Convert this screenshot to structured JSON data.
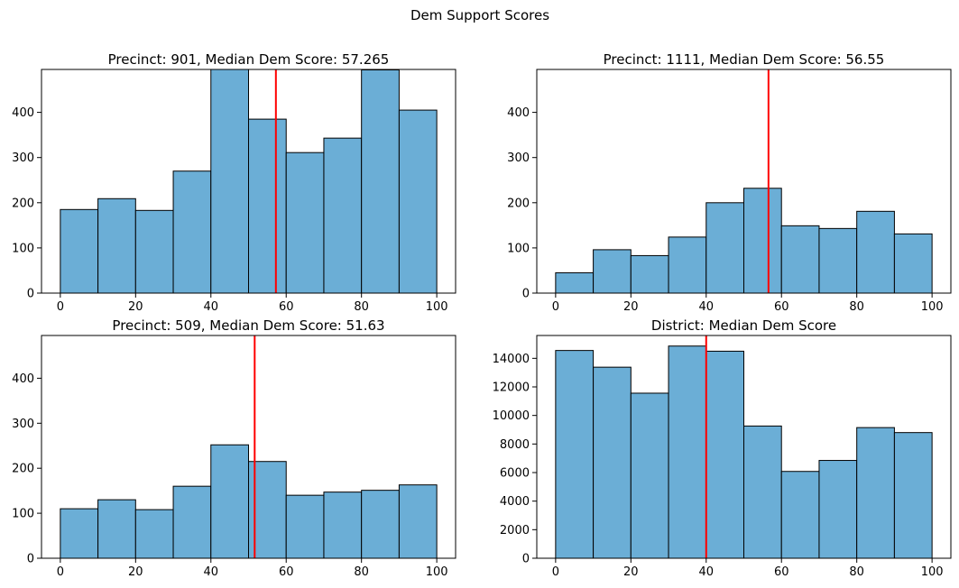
{
  "figure": {
    "title": "Dem Support Scores"
  },
  "chart_data": [
    {
      "type": "bar",
      "title": "Precinct: 901, Median Dem Score: 57.265",
      "bin_edges": [
        0,
        10,
        20,
        30,
        40,
        50,
        60,
        70,
        80,
        90,
        100
      ],
      "values": [
        185,
        209,
        183,
        270,
        498,
        385,
        311,
        343,
        494,
        405
      ],
      "median": 57.265,
      "xlim": [
        -5,
        105
      ],
      "ylim": [
        0,
        495
      ],
      "xticks": [
        0,
        20,
        40,
        60,
        80,
        100
      ],
      "yticks": [
        0,
        100,
        200,
        300,
        400
      ],
      "bar_color": "#6baed6",
      "median_color": "#ff0000",
      "grid": false
    },
    {
      "type": "bar",
      "title": "Precinct: 1111, Median Dem Score: 56.55",
      "bin_edges": [
        0,
        10,
        20,
        30,
        40,
        50,
        60,
        70,
        80,
        90,
        100
      ],
      "values": [
        45,
        96,
        83,
        124,
        200,
        232,
        149,
        143,
        181,
        131
      ],
      "median": 56.55,
      "xlim": [
        -5,
        105
      ],
      "ylim": [
        0,
        495
      ],
      "xticks": [
        0,
        20,
        40,
        60,
        80,
        100
      ],
      "yticks": [
        0,
        100,
        200,
        300,
        400
      ],
      "bar_color": "#6baed6",
      "median_color": "#ff0000",
      "grid": false
    },
    {
      "type": "bar",
      "title": "Precinct: 509, Median Dem Score: 51.63",
      "bin_edges": [
        0,
        10,
        20,
        30,
        40,
        50,
        60,
        70,
        80,
        90,
        100
      ],
      "values": [
        110,
        130,
        108,
        160,
        252,
        215,
        140,
        147,
        151,
        163
      ],
      "median": 51.63,
      "xlim": [
        -5,
        105
      ],
      "ylim": [
        0,
        495
      ],
      "xticks": [
        0,
        20,
        40,
        60,
        80,
        100
      ],
      "yticks": [
        0,
        100,
        200,
        300,
        400
      ],
      "bar_color": "#6baed6",
      "median_color": "#ff0000",
      "grid": false
    },
    {
      "type": "bar",
      "title": "District: Median Dem Score",
      "bin_edges": [
        0,
        10,
        20,
        30,
        40,
        50,
        60,
        70,
        80,
        90,
        100
      ],
      "values": [
        14550,
        13380,
        11560,
        14860,
        14500,
        9260,
        6080,
        6850,
        9150,
        8800
      ],
      "median": 40,
      "xlim": [
        -5,
        105
      ],
      "ylim": [
        0,
        15600
      ],
      "xticks": [
        0,
        20,
        40,
        60,
        80,
        100
      ],
      "yticks": [
        0,
        2000,
        4000,
        6000,
        8000,
        10000,
        12000,
        14000
      ],
      "bar_color": "#6baed6",
      "median_color": "#ff0000",
      "grid": false
    }
  ]
}
